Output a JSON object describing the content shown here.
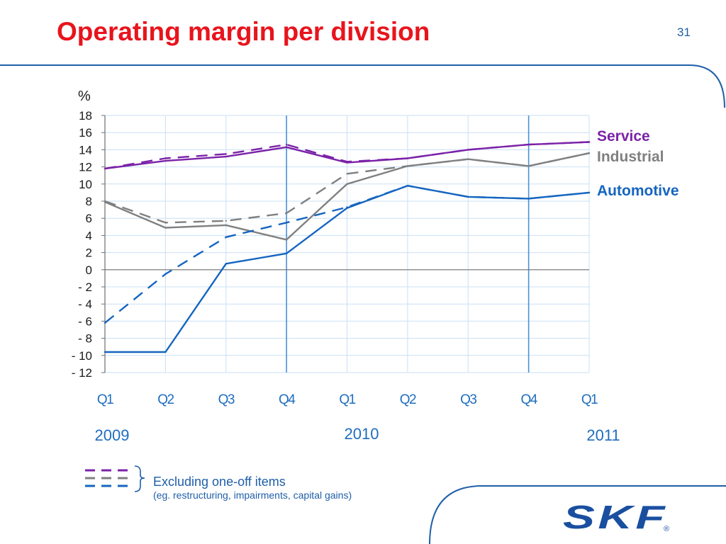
{
  "slide": {
    "title": "Operating margin per division",
    "page_number": "31",
    "logo_text": "SKF",
    "logo_mark": "®"
  },
  "footnote": {
    "main": "Excluding one-off items",
    "sub": "(eg. restructuring, impairments, capital gains)"
  },
  "colors": {
    "title": "#e8141c",
    "service": "#7b22a8",
    "industrial": "#808080",
    "automotive": "#1565c0",
    "grid": "#c9e0f5",
    "accent_blue": "#1f6dbf",
    "logo": "#1a4fa0"
  },
  "chart_data": {
    "type": "line",
    "ylabel": "%",
    "ylim": [
      -12,
      18
    ],
    "yticks": [
      18,
      16,
      14,
      12,
      10,
      8,
      6,
      4,
      2,
      0,
      -2,
      -4,
      -6,
      -8,
      -10,
      -12
    ],
    "ytick_labels": [
      "18",
      "16",
      "14",
      "12",
      "10",
      "8",
      "6",
      "4",
      "2",
      "0",
      "- 2",
      "- 4",
      "- 6",
      "- 8",
      "- 10",
      "- 12"
    ],
    "categories": [
      "Q1",
      "Q2",
      "Q3",
      "Q4",
      "Q1",
      "Q2",
      "Q3",
      "Q4",
      "Q1"
    ],
    "year_labels": [
      {
        "label": "2009",
        "at": 0
      },
      {
        "label": "2010",
        "at": 4
      },
      {
        "label": "2011",
        "at": 8
      }
    ],
    "year_dividers_after": [
      3,
      7
    ],
    "grid": true,
    "legend": "right",
    "series": [
      {
        "name": "Service",
        "key": "service",
        "style": "solid",
        "values": [
          11.8,
          12.7,
          13.2,
          14.3,
          12.5,
          13.0,
          14.0,
          14.6,
          14.9
        ]
      },
      {
        "key": "service",
        "style": "dashed",
        "values": [
          11.8,
          13.0,
          13.5,
          14.6,
          12.6,
          13.0,
          14.0,
          14.6,
          14.9
        ]
      },
      {
        "name": "Industrial",
        "key": "industrial",
        "style": "solid",
        "values": [
          7.9,
          4.9,
          5.2,
          3.5,
          10.0,
          12.1,
          12.9,
          12.1,
          13.6
        ]
      },
      {
        "key": "industrial",
        "style": "dashed",
        "values": [
          8.0,
          5.5,
          5.7,
          6.6,
          11.2,
          12.1,
          12.9,
          12.1,
          13.6
        ]
      },
      {
        "name": "Automotive",
        "key": "automotive",
        "style": "solid",
        "values": [
          -9.6,
          -9.6,
          0.7,
          1.9,
          7.2,
          9.8,
          8.5,
          8.3,
          9.0
        ]
      },
      {
        "key": "automotive",
        "style": "dashed",
        "values": [
          -6.2,
          -0.5,
          3.8,
          5.5,
          7.3,
          9.8,
          8.5,
          8.3,
          9.0
        ]
      }
    ]
  }
}
